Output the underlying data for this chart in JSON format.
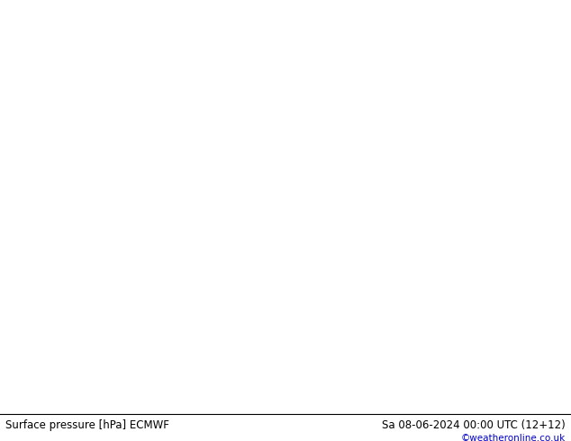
{
  "title_left": "Surface pressure [hPa] ECMWF",
  "title_right": "Sa 08-06-2024 00:00 UTC (12+12)",
  "credit": "©weatheronline.co.uk",
  "credit_color": "#0000cc",
  "fig_width": 6.34,
  "fig_height": 4.9,
  "dpi": 100,
  "footer_text_color": "#000000",
  "contour_black_color": "#000000",
  "contour_red_color": "#cc0000",
  "contour_blue_color": "#0000cc",
  "label_fontsize": 6.5,
  "footer_fontsize": 8.5,
  "credit_fontsize": 7.5,
  "land_green": [
    0.78,
    0.91,
    0.73
  ],
  "land_gray": [
    0.75,
    0.75,
    0.75
  ],
  "ocean_light": [
    0.88,
    0.88,
    0.9
  ],
  "sea_light": [
    0.82,
    0.87,
    0.95
  ],
  "lon_min": -45,
  "lon_max": 65,
  "lat_min": 25,
  "lat_max": 72
}
